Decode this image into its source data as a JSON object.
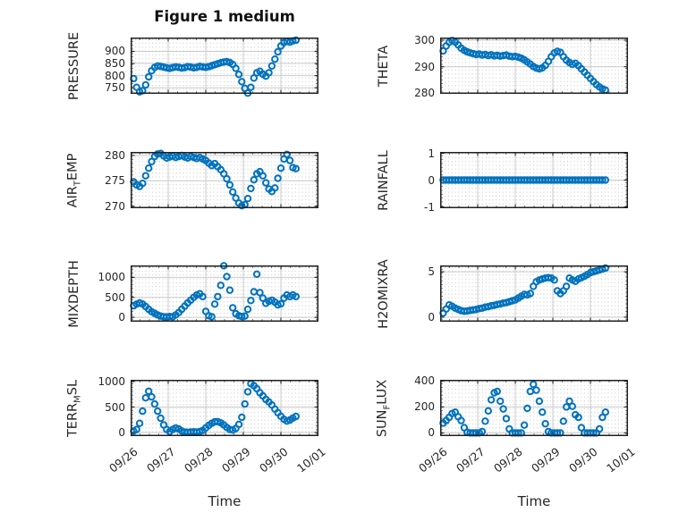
{
  "figure": {
    "background": "#ffffff",
    "text_color": "#262626",
    "box_color": "#1f1f1f",
    "major_grid_color": "#cbcbcb",
    "minor_grid_dot_color": "#c3c3c3"
  },
  "chart_data": {
    "type": "scatter",
    "title": "Figure 1 medium",
    "xlabel": "Time",
    "marker": "o",
    "marker_color": "#0072BD",
    "grid": "major solid gray + dotted minor grid, box on, ticks on all sides",
    "legend": "none",
    "xlim_days": [
      0,
      5
    ],
    "x_tick_days": [
      0,
      1,
      2,
      3,
      4,
      5
    ],
    "x_tick_labels": [
      "09/26",
      "09/27",
      "09/28",
      "09/29",
      "09/30",
      "10/01"
    ],
    "x_days": [
      0.08,
      0.16,
      0.24,
      0.32,
      0.4,
      0.48,
      0.56,
      0.64,
      0.72,
      0.8,
      0.88,
      0.96,
      1.04,
      1.12,
      1.2,
      1.28,
      1.36,
      1.44,
      1.52,
      1.6,
      1.68,
      1.76,
      1.84,
      1.92,
      2.0,
      2.08,
      2.16,
      2.24,
      2.32,
      2.4,
      2.48,
      2.56,
      2.64,
      2.72,
      2.8,
      2.88,
      2.96,
      3.04,
      3.12,
      3.2,
      3.28,
      3.36,
      3.44,
      3.52,
      3.6,
      3.68,
      3.76,
      3.84,
      3.92,
      4.0,
      4.08,
      4.16,
      4.24,
      4.32,
      4.4
    ],
    "subplots": [
      {
        "id": "pressure",
        "row": 0,
        "col": 0,
        "ylabel": "PRESSURE",
        "ylabel_parts": [
          {
            "text": "PRESSURE",
            "sub": false
          }
        ],
        "yticks": [
          750,
          800,
          850,
          900
        ],
        "ylim": [
          725,
          957
        ],
        "y": [
          788,
          752,
          733,
          738,
          762,
          795,
          820,
          834,
          840,
          838,
          835,
          832,
          830,
          833,
          836,
          834,
          831,
          833,
          837,
          835,
          832,
          834,
          838,
          836,
          834,
          837,
          841,
          845,
          849,
          853,
          856,
          858,
          854,
          846,
          830,
          805,
          775,
          748,
          728,
          752,
          790,
          812,
          818,
          806,
          798,
          812,
          840,
          868,
          898,
          922,
          936,
          941,
          938,
          943,
          946
        ]
      },
      {
        "id": "theta",
        "row": 0,
        "col": 1,
        "ylabel": "THETA",
        "ylabel_parts": [
          {
            "text": "THETA",
            "sub": false
          }
        ],
        "yticks": [
          280,
          290,
          300
        ],
        "ylim": [
          279.8,
          301
        ],
        "y": [
          296.0,
          297.8,
          299.2,
          299.9,
          299.3,
          298.2,
          297.0,
          296.2,
          295.6,
          295.2,
          294.9,
          294.6,
          294.8,
          294.4,
          294.6,
          294.2,
          294.5,
          294.1,
          294.3,
          294.0,
          294.2,
          294.4,
          294.0,
          293.8,
          293.9,
          293.6,
          293.2,
          292.6,
          291.8,
          291.0,
          290.1,
          289.5,
          289.2,
          289.6,
          290.5,
          292.0,
          293.8,
          295.2,
          295.8,
          295.4,
          293.8,
          292.5,
          291.6,
          290.9,
          291.3,
          290.4,
          289.2,
          288.0,
          286.8,
          285.6,
          284.4,
          283.3,
          282.4,
          281.7,
          281.2
        ]
      },
      {
        "id": "air-temp",
        "row": 1,
        "col": 0,
        "ylabel": "AIR_TEMP",
        "ylabel_parts": [
          {
            "text": "AIR",
            "sub": false
          },
          {
            "text": "T",
            "sub": true
          },
          {
            "text": "EMP",
            "sub": false
          }
        ],
        "yticks": [
          270,
          275,
          280
        ],
        "ylim": [
          269.6,
          280.7
        ],
        "y": [
          274.8,
          274.2,
          273.9,
          274.5,
          276.0,
          277.5,
          278.8,
          279.8,
          280.3,
          280.4,
          279.9,
          279.5,
          279.7,
          279.9,
          279.6,
          279.8,
          280.0,
          279.7,
          279.5,
          279.8,
          279.6,
          279.4,
          279.6,
          279.3,
          279.0,
          278.5,
          278.0,
          278.4,
          277.8,
          277.2,
          276.4,
          275.4,
          274.2,
          272.8,
          271.6,
          270.6,
          270.1,
          270.3,
          271.5,
          273.5,
          275.2,
          276.4,
          276.8,
          276.0,
          274.6,
          273.4,
          272.9,
          273.6,
          275.5,
          277.5,
          279.3,
          280.2,
          279.0,
          277.6,
          277.4
        ]
      },
      {
        "id": "rainfall",
        "row": 1,
        "col": 1,
        "ylabel": "RAINFALL",
        "ylabel_parts": [
          {
            "text": "RAINFALL",
            "sub": false
          }
        ],
        "yticks": [
          -1,
          0,
          1
        ],
        "ylim": [
          -1.05,
          1.05
        ],
        "y": [
          0,
          0,
          0,
          0,
          0,
          0,
          0,
          0,
          0,
          0,
          0,
          0,
          0,
          0,
          0,
          0,
          0,
          0,
          0,
          0,
          0,
          0,
          0,
          0,
          0,
          0,
          0,
          0,
          0,
          0,
          0,
          0,
          0,
          0,
          0,
          0,
          0,
          0,
          0,
          0,
          0,
          0,
          0,
          0,
          0,
          0,
          0,
          0,
          0,
          0,
          0,
          0,
          0,
          0,
          0
        ]
      },
      {
        "id": "mixdepth",
        "row": 2,
        "col": 0,
        "ylabel": "MIXDEPTH",
        "ylabel_parts": [
          {
            "text": "MIXDEPTH",
            "sub": false
          }
        ],
        "yticks": [
          0,
          500,
          1000
        ],
        "ylim": [
          -110,
          1300
        ],
        "y": [
          290,
          330,
          360,
          330,
          270,
          200,
          140,
          100,
          60,
          30,
          15,
          10,
          20,
          15,
          60,
          120,
          200,
          280,
          360,
          430,
          500,
          560,
          590,
          520,
          150,
          40,
          15,
          330,
          520,
          800,
          1290,
          1020,
          680,
          240,
          90,
          40,
          20,
          30,
          200,
          420,
          640,
          1080,
          620,
          480,
          350,
          400,
          430,
          380,
          310,
          340,
          480,
          560,
          520,
          560,
          520
        ]
      },
      {
        "id": "h2omixra",
        "row": 2,
        "col": 1,
        "ylabel": "H2OMIXRA",
        "ylabel_parts": [
          {
            "text": "H2OMIXRA",
            "sub": false
          }
        ],
        "yticks": [
          0,
          5
        ],
        "ylim": [
          -0.5,
          5.7
        ],
        "y": [
          0.45,
          0.9,
          1.35,
          1.2,
          1.0,
          0.85,
          0.72,
          0.65,
          0.68,
          0.75,
          0.8,
          0.85,
          0.95,
          1.0,
          1.1,
          1.15,
          1.25,
          1.3,
          1.4,
          1.45,
          1.55,
          1.6,
          1.7,
          1.8,
          1.9,
          2.1,
          2.3,
          2.5,
          2.45,
          2.6,
          3.4,
          3.9,
          4.1,
          4.2,
          4.3,
          4.35,
          4.3,
          4.1,
          2.9,
          2.6,
          2.9,
          3.4,
          4.3,
          4.1,
          3.95,
          4.2,
          4.35,
          4.5,
          4.7,
          4.9,
          5.0,
          5.1,
          5.2,
          5.3,
          5.4
        ]
      },
      {
        "id": "terr-msl",
        "row": 3,
        "col": 0,
        "ylabel": "TERR_MSL",
        "ylabel_parts": [
          {
            "text": "TERR",
            "sub": false
          },
          {
            "text": "M",
            "sub": true
          },
          {
            "text": "SL",
            "sub": false
          }
        ],
        "yticks": [
          0,
          500,
          1000
        ],
        "ylim": [
          -70,
          1035
        ],
        "y": [
          30,
          60,
          180,
          420,
          680,
          810,
          700,
          560,
          420,
          280,
          150,
          60,
          20,
          60,
          90,
          70,
          30,
          10,
          5,
          10,
          15,
          10,
          20,
          40,
          90,
          140,
          180,
          210,
          215,
          190,
          150,
          100,
          60,
          50,
          80,
          160,
          300,
          560,
          800,
          960,
          920,
          860,
          780,
          720,
          650,
          600,
          540,
          460,
          390,
          320,
          260,
          225,
          245,
          285,
          315
        ]
      },
      {
        "id": "sun-flux",
        "row": 3,
        "col": 1,
        "ylabel": "SUN_FLUX",
        "ylabel_parts": [
          {
            "text": "SUN",
            "sub": false
          },
          {
            "text": "F",
            "sub": true
          },
          {
            "text": "LUX",
            "sub": false
          }
        ],
        "yticks": [
          0,
          200,
          400
        ],
        "ylim": [
          -25,
          410
        ],
        "y": [
          75,
          95,
          120,
          150,
          160,
          125,
          95,
          40,
          5,
          0,
          0,
          0,
          0,
          10,
          90,
          170,
          255,
          310,
          320,
          245,
          185,
          110,
          30,
          0,
          0,
          0,
          0,
          60,
          190,
          320,
          375,
          330,
          245,
          160,
          70,
          10,
          0,
          0,
          0,
          0,
          90,
          200,
          245,
          205,
          140,
          120,
          40,
          0,
          0,
          0,
          0,
          0,
          30,
          120,
          160
        ]
      }
    ]
  }
}
